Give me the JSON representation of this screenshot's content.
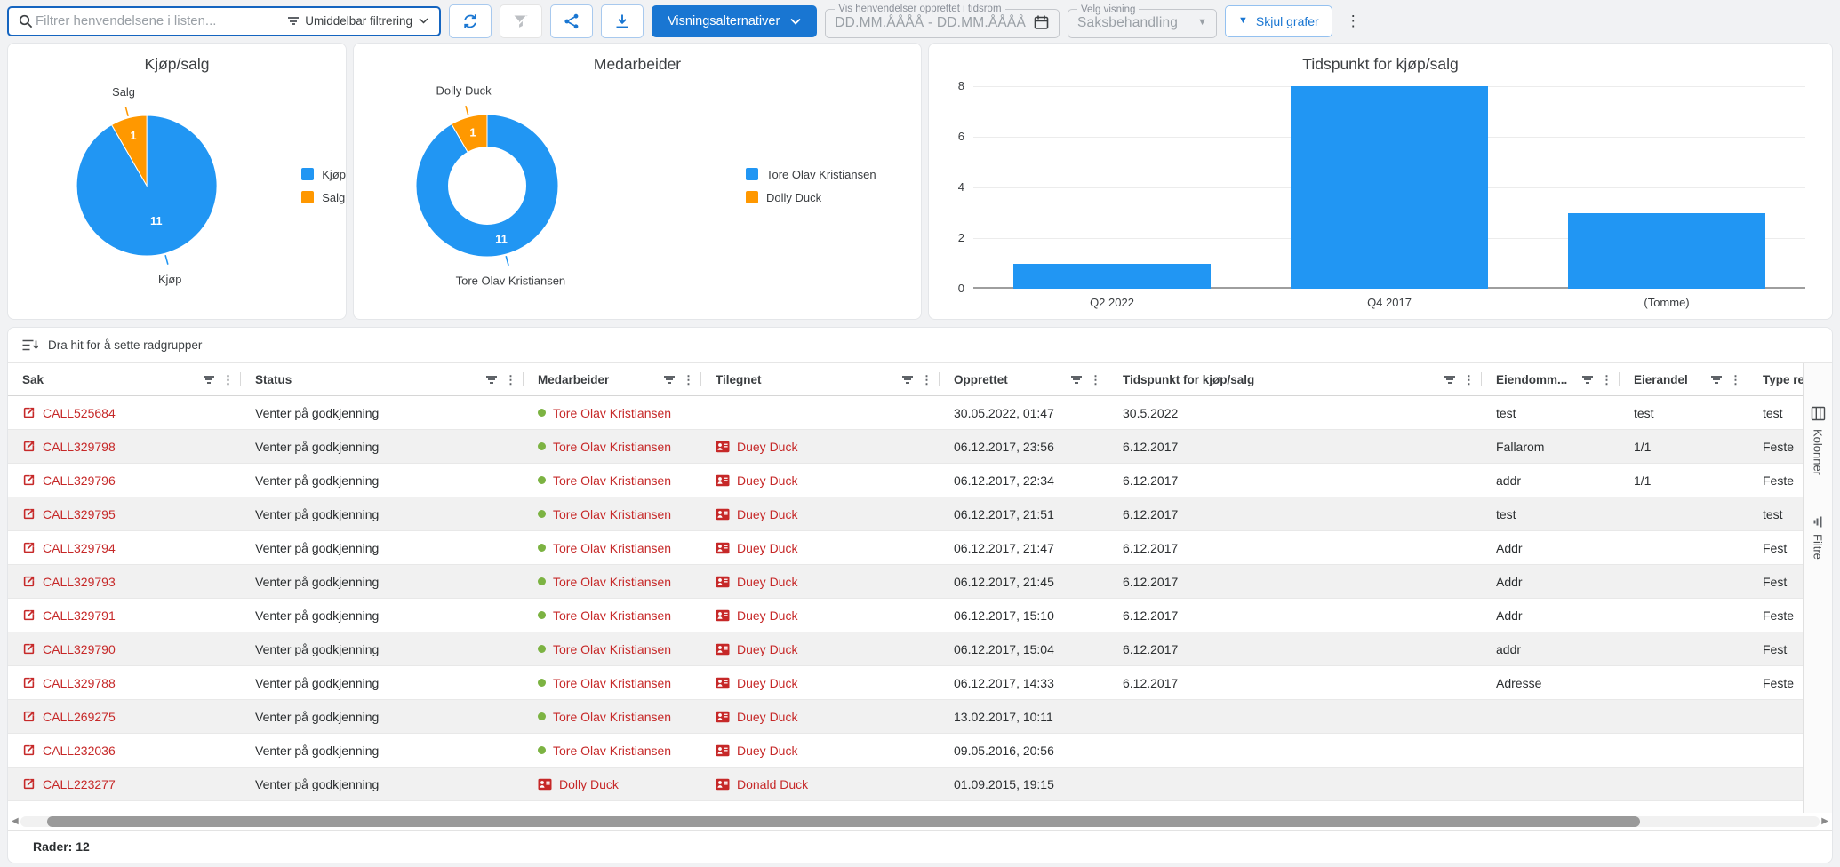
{
  "colors": {
    "accent": "#1976d2",
    "chart_blue": "#2196f3",
    "chart_orange": "#ff9800",
    "link_red": "#c62828",
    "status_green": "#7cb342"
  },
  "toolbar": {
    "search_placeholder": "Filtrer henvendelsene i listen...",
    "filter_mode_label": "Umiddelbar filtrering",
    "view_options_label": "Visningsalternativer",
    "date_range": {
      "legend": "Vis henvendelser opprettet i tidsrom",
      "placeholder": "DD.MM.ÅÅÅÅ - DD.MM.ÅÅÅÅ"
    },
    "view_select": {
      "legend": "Velg visning",
      "value": "Saksbehandling"
    },
    "hide_charts_label": "Skjul grafer"
  },
  "chart_data": [
    {
      "type": "pie",
      "title": "Kjøp/salg",
      "labels": [
        "Kjøp",
        "Salg"
      ],
      "values": [
        11,
        1
      ],
      "colors": [
        "#2196f3",
        "#ff9800"
      ],
      "legend_position": "right"
    },
    {
      "type": "pie",
      "subtype": "donut",
      "title": "Medarbeider",
      "labels": [
        "Tore Olav Kristiansen",
        "Dolly Duck"
      ],
      "values": [
        11,
        1
      ],
      "colors": [
        "#2196f3",
        "#ff9800"
      ],
      "legend_position": "right"
    },
    {
      "type": "bar",
      "title": "Tidspunkt for kjøp/salg",
      "categories": [
        "Q2 2022",
        "Q4 2017",
        "(Tomme)"
      ],
      "values": [
        1,
        8,
        3
      ],
      "ylim": [
        0,
        8
      ],
      "yticks": [
        0,
        2,
        4,
        6,
        8
      ],
      "color": "#2196f3",
      "grid": true
    }
  ],
  "row_group_bar": {
    "label": "Dra hit for å sette radgrupper"
  },
  "table": {
    "columns": [
      {
        "key": "sak",
        "label": "Sak"
      },
      {
        "key": "status",
        "label": "Status"
      },
      {
        "key": "medarbeider",
        "label": "Medarbeider"
      },
      {
        "key": "tilegnet",
        "label": "Tilegnet"
      },
      {
        "key": "opprettet",
        "label": "Opprettet"
      },
      {
        "key": "tidspunkt_kjop_salg",
        "label": "Tidspunkt for kjøp/salg"
      },
      {
        "key": "eiendom",
        "label": "Eiendomm..."
      },
      {
        "key": "eierandel",
        "label": "Eierandel"
      },
      {
        "key": "type_re",
        "label": "Type re"
      }
    ],
    "rows": [
      {
        "sak": "CALL525684",
        "status": "Venter på godkjenning",
        "medarbeider": {
          "name": "Tore Olav Kristiansen",
          "icon": "green-dot"
        },
        "tilegnet": null,
        "opprettet": "30.05.2022, 01:47",
        "tidspunkt_kjop_salg": "30.5.2022",
        "eiendom": "test",
        "eierandel": "test",
        "type_re": "test"
      },
      {
        "sak": "CALL329798",
        "status": "Venter på godkjenning",
        "medarbeider": {
          "name": "Tore Olav Kristiansen",
          "icon": "green-dot"
        },
        "tilegnet": {
          "name": "Duey Duck",
          "icon": "contact-card"
        },
        "opprettet": "06.12.2017, 23:56",
        "tidspunkt_kjop_salg": "6.12.2017",
        "eiendom": "Fallarom",
        "eierandel": "1/1",
        "type_re": "Feste"
      },
      {
        "sak": "CALL329796",
        "status": "Venter på godkjenning",
        "medarbeider": {
          "name": "Tore Olav Kristiansen",
          "icon": "green-dot"
        },
        "tilegnet": {
          "name": "Duey Duck",
          "icon": "contact-card"
        },
        "opprettet": "06.12.2017, 22:34",
        "tidspunkt_kjop_salg": "6.12.2017",
        "eiendom": "addr",
        "eierandel": "1/1",
        "type_re": "Feste"
      },
      {
        "sak": "CALL329795",
        "status": "Venter på godkjenning",
        "medarbeider": {
          "name": "Tore Olav Kristiansen",
          "icon": "green-dot"
        },
        "tilegnet": {
          "name": "Duey Duck",
          "icon": "contact-card"
        },
        "opprettet": "06.12.2017, 21:51",
        "tidspunkt_kjop_salg": "6.12.2017",
        "eiendom": "test",
        "eierandel": "",
        "type_re": "test"
      },
      {
        "sak": "CALL329794",
        "status": "Venter på godkjenning",
        "medarbeider": {
          "name": "Tore Olav Kristiansen",
          "icon": "green-dot"
        },
        "tilegnet": {
          "name": "Duey Duck",
          "icon": "contact-card"
        },
        "opprettet": "06.12.2017, 21:47",
        "tidspunkt_kjop_salg": "6.12.2017",
        "eiendom": "Addr",
        "eierandel": "",
        "type_re": "Fest"
      },
      {
        "sak": "CALL329793",
        "status": "Venter på godkjenning",
        "medarbeider": {
          "name": "Tore Olav Kristiansen",
          "icon": "green-dot"
        },
        "tilegnet": {
          "name": "Duey Duck",
          "icon": "contact-card"
        },
        "opprettet": "06.12.2017, 21:45",
        "tidspunkt_kjop_salg": "6.12.2017",
        "eiendom": "Addr",
        "eierandel": "",
        "type_re": "Fest"
      },
      {
        "sak": "CALL329791",
        "status": "Venter på godkjenning",
        "medarbeider": {
          "name": "Tore Olav Kristiansen",
          "icon": "green-dot"
        },
        "tilegnet": {
          "name": "Duey Duck",
          "icon": "contact-card"
        },
        "opprettet": "06.12.2017, 15:10",
        "tidspunkt_kjop_salg": "6.12.2017",
        "eiendom": "Addr",
        "eierandel": "",
        "type_re": "Feste"
      },
      {
        "sak": "CALL329790",
        "status": "Venter på godkjenning",
        "medarbeider": {
          "name": "Tore Olav Kristiansen",
          "icon": "green-dot"
        },
        "tilegnet": {
          "name": "Duey Duck",
          "icon": "contact-card"
        },
        "opprettet": "06.12.2017, 15:04",
        "tidspunkt_kjop_salg": "6.12.2017",
        "eiendom": "addr",
        "eierandel": "",
        "type_re": "Fest"
      },
      {
        "sak": "CALL329788",
        "status": "Venter på godkjenning",
        "medarbeider": {
          "name": "Tore Olav Kristiansen",
          "icon": "green-dot"
        },
        "tilegnet": {
          "name": "Duey Duck",
          "icon": "contact-card"
        },
        "opprettet": "06.12.2017, 14:33",
        "tidspunkt_kjop_salg": "6.12.2017",
        "eiendom": "Adresse",
        "eierandel": "",
        "type_re": "Feste"
      },
      {
        "sak": "CALL269275",
        "status": "Venter på godkjenning",
        "medarbeider": {
          "name": "Tore Olav Kristiansen",
          "icon": "green-dot"
        },
        "tilegnet": {
          "name": "Duey Duck",
          "icon": "contact-card"
        },
        "opprettet": "13.02.2017, 10:11",
        "tidspunkt_kjop_salg": "",
        "eiendom": "",
        "eierandel": "",
        "type_re": ""
      },
      {
        "sak": "CALL232036",
        "status": "Venter på godkjenning",
        "medarbeider": {
          "name": "Tore Olav Kristiansen",
          "icon": "green-dot"
        },
        "tilegnet": {
          "name": "Duey Duck",
          "icon": "contact-card"
        },
        "opprettet": "09.05.2016, 20:56",
        "tidspunkt_kjop_salg": "",
        "eiendom": "",
        "eierandel": "",
        "type_re": ""
      },
      {
        "sak": "CALL223277",
        "status": "Venter på godkjenning",
        "medarbeider": {
          "name": "Dolly Duck",
          "icon": "contact-card"
        },
        "tilegnet": {
          "name": "Donald Duck",
          "icon": "contact-card"
        },
        "opprettet": "01.09.2015, 19:15",
        "tidspunkt_kjop_salg": "",
        "eiendom": "",
        "eierandel": "",
        "type_re": ""
      }
    ]
  },
  "side_panel": {
    "tabs": [
      {
        "label": "Kolonner"
      },
      {
        "label": "Filtre"
      }
    ]
  },
  "footer": {
    "rows_label": "Rader: 12"
  }
}
